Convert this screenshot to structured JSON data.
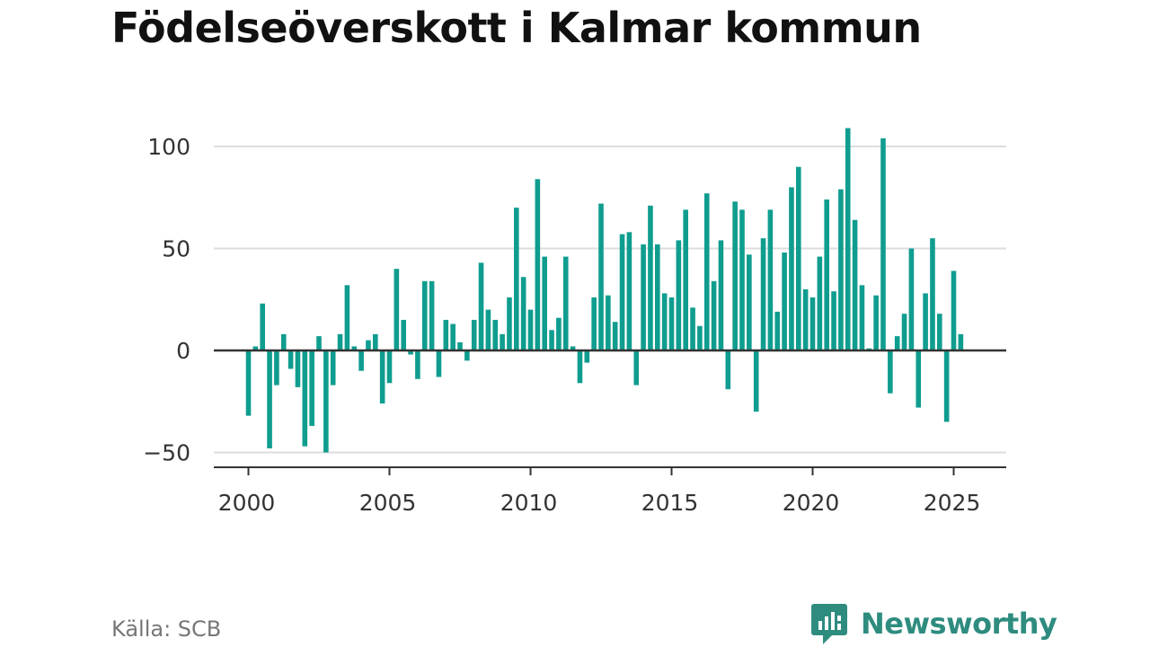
{
  "title": "Födelseöverskott i Kalmar kommun",
  "source": "Källa: SCB",
  "brand": {
    "name": "Newsworthy",
    "icon": "newsworthy-logo-icon",
    "color": "#2e8c7f"
  },
  "colors": {
    "bar": "#0f9d8f",
    "grid": "#dddddd",
    "axis": "#333333"
  },
  "chart_data": {
    "type": "bar",
    "title": "Födelseöverskott i Kalmar kommun",
    "xlabel": "",
    "ylabel": "",
    "frequency": "quarterly",
    "start_period": "2000 Q1",
    "end_period": "2025 Q2",
    "xlim": [
      1999.8,
      2025.8
    ],
    "ylim": [
      -55,
      110
    ],
    "grid": true,
    "legend": "none",
    "xticks": [
      2000,
      2005,
      2010,
      2015,
      2020,
      2025
    ],
    "xtick_labels": [
      "2000",
      "2005",
      "2010",
      "2015",
      "2020",
      "2025"
    ],
    "yticks": [
      -50,
      0,
      50,
      100
    ],
    "ytick_labels": [
      "−50",
      "0",
      "50",
      "100"
    ],
    "values": [
      -32,
      2,
      23,
      -48,
      -17,
      8,
      -9,
      -18,
      -47,
      -37,
      7,
      -50,
      -17,
      8,
      32,
      2,
      -10,
      5,
      8,
      -26,
      -16,
      40,
      15,
      -2,
      -14,
      34,
      34,
      -13,
      15,
      13,
      4,
      -5,
      15,
      43,
      20,
      15,
      8,
      26,
      70,
      36,
      20,
      84,
      46,
      10,
      16,
      46,
      2,
      -16,
      -6,
      26,
      72,
      27,
      14,
      57,
      58,
      -17,
      52,
      71,
      52,
      28,
      26,
      54,
      69,
      21,
      12,
      77,
      34,
      54,
      -19,
      73,
      69,
      47,
      -30,
      55,
      69,
      19,
      48,
      80,
      90,
      30,
      26,
      46,
      74,
      29,
      79,
      109,
      64,
      32,
      1,
      27,
      104,
      -21,
      7,
      18,
      50,
      -28,
      28,
      55,
      18,
      -35,
      39,
      8
    ]
  }
}
